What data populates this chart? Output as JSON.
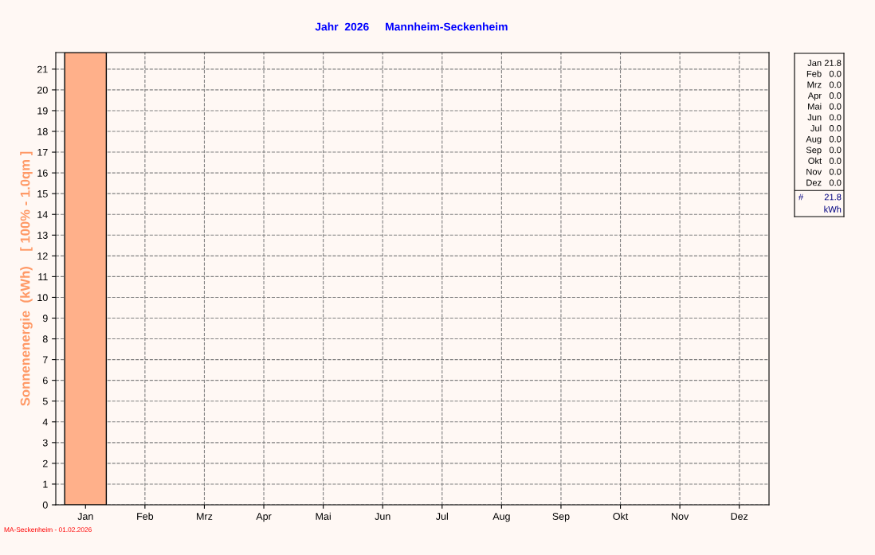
{
  "chart_data": [
    {
      "type": "bar",
      "title": "Jahr  2026",
      "subtitle": "Mannheim-Seckenheim",
      "ylabel": "Sonnenenergie  (kWh)    [ 100% - 1.0qm ]",
      "categories": [
        "Jan",
        "Feb",
        "Mrz",
        "Apr",
        "Mai",
        "Jun",
        "Jul",
        "Aug",
        "Sep",
        "Okt",
        "Nov",
        "Dez"
      ],
      "values": [
        21.8,
        0,
        0,
        0,
        0,
        0,
        0,
        0,
        0,
        0,
        0,
        0
      ],
      "color": "#ffb08a",
      "ylim": [
        0,
        21.8
      ],
      "yticks": [
        0,
        1,
        2,
        3,
        4,
        5,
        6,
        7,
        8,
        9,
        10,
        11,
        12,
        13,
        14,
        15,
        16,
        17,
        18,
        19,
        20,
        21
      ],
      "grid": true,
      "line_style": "dashed",
      "legend": false,
      "annotations": [
        "MA-Seckenheim - 01.02.2026"
      ]
    },
    {
      "type": "other",
      "categories": [
        "Jan",
        "Feb",
        "Mrz",
        "Apr",
        "Mai",
        "Jun",
        "Jul",
        "Aug",
        "Sep",
        "Okt",
        "Nov",
        "Dez"
      ],
      "annotations": [
        "21.8",
        "0.0",
        "0.0",
        "0.0",
        "0.0",
        "0.0",
        "0.0",
        "0.0",
        "0.0",
        "0.0",
        "0.0",
        "0.0",
        "#",
        "21.8",
        "kWh"
      ]
    }
  ]
}
